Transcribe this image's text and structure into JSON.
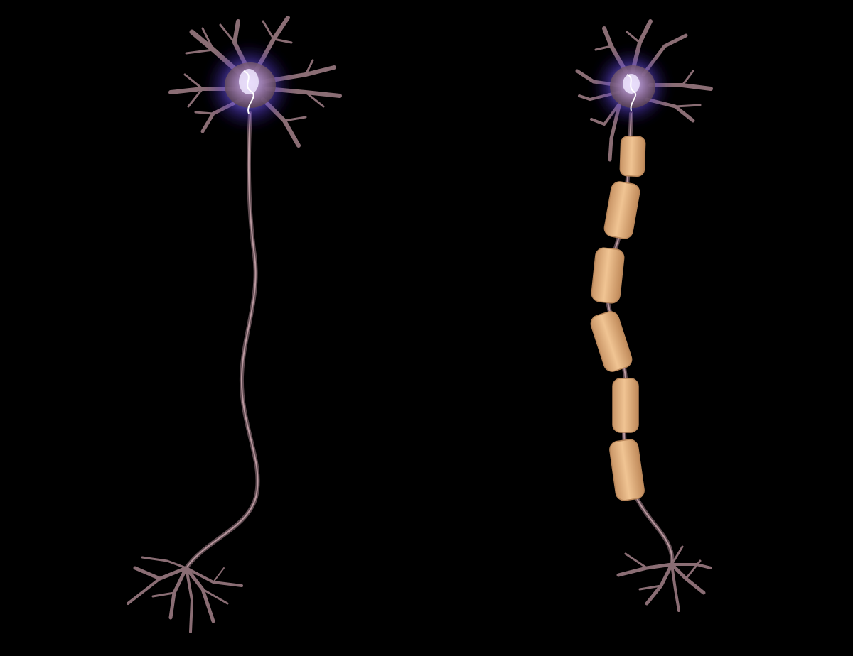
{
  "scene": {
    "background_color": "#000000",
    "neurons": [
      {
        "id": "unmyelinated",
        "myelinated": false,
        "myelin_segment_count": 0
      },
      {
        "id": "myelinated",
        "myelinated": true,
        "myelin_segment_count": 6
      }
    ]
  },
  "colors": {
    "membrane": "#7a5f66",
    "membrane_highlight": "#d9b8bf",
    "nucleus_glow": "#7b6cff",
    "nucleus_core": "#e8dcff",
    "myelin": "#e2b07e",
    "myelin_edge": "#b8865a"
  }
}
